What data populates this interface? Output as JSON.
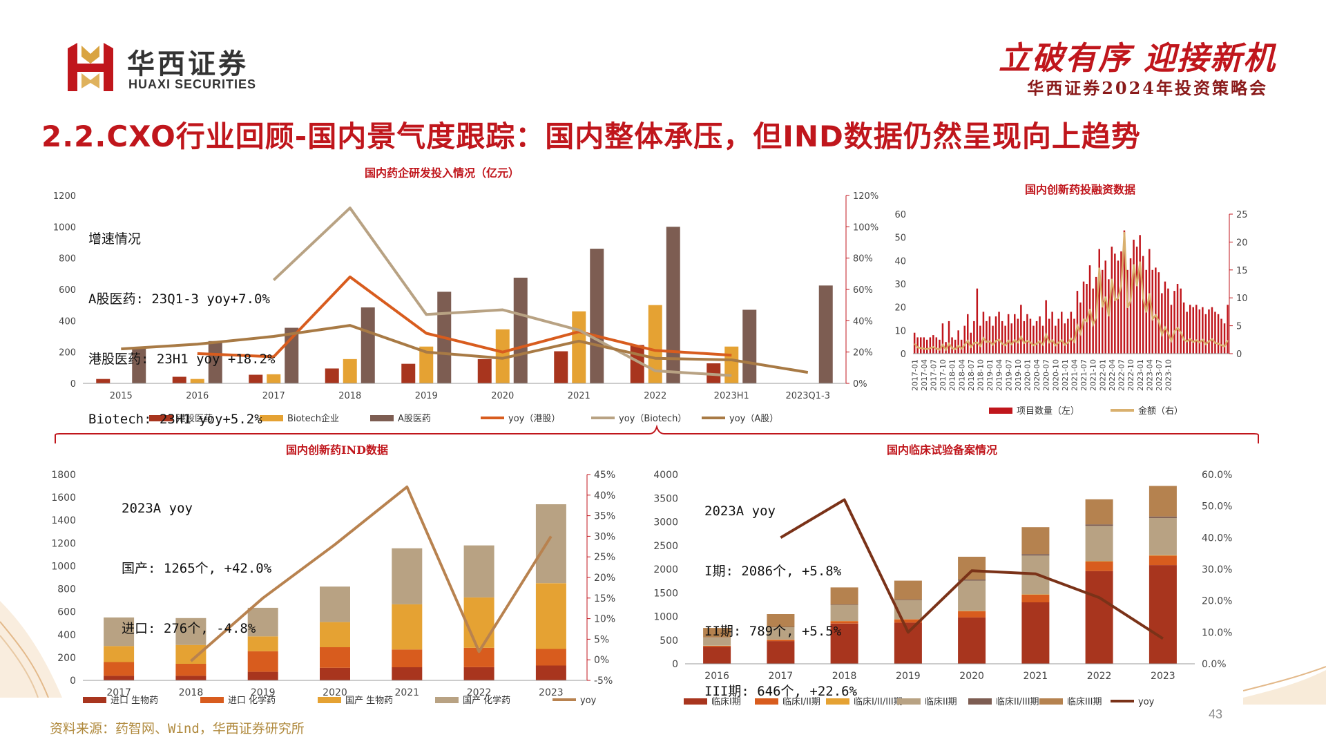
{
  "header": {
    "logo_cn": "华西证券",
    "logo_en": "HUAXI SECURITIES",
    "slogan_main": "立破有序 迎接新机",
    "slogan_sub": "华西证券2024年投资策略会",
    "page_title": "2.2.CXO行业回顾-国内景气度跟踪：国内整体承压，但IND数据仍然呈现向上趋势",
    "brand_color": "#c0161c"
  },
  "annotations": {
    "rd": [
      "增速情况",
      "A股医药: 23Q1-3 yoy+7.0%",
      "港股医药: 23H1 yoy +18.2%",
      "Biotech: 23H1 yoy+5.2%"
    ],
    "ind": [
      "2023A yoy",
      "国产: 1265个, +42.0%",
      "进口: 276个, -4.8%"
    ],
    "trial": [
      "2023A yoy",
      "I期: 2086个, +5.8%",
      "II期: 789个, +5.5%",
      "III期: 646个, +22.6%"
    ]
  },
  "footer": {
    "source": "资料来源：药智网、Wind，华西证券研究所",
    "page_number": "43"
  },
  "chart_data": [
    {
      "id": "rd",
      "type": "bar",
      "title": "国内药企研发投入情况（亿元）",
      "categories": [
        "2015",
        "2016",
        "2017",
        "2018",
        "2019",
        "2020",
        "2021",
        "2022",
        "2023H1",
        "2023Q1-3"
      ],
      "yticks": [
        "0",
        "200",
        "400",
        "600",
        "800",
        "1000",
        "1200"
      ],
      "y2ticks": [
        "0%",
        "20%",
        "40%",
        "60%",
        "80%",
        "100%",
        "120%"
      ],
      "ylim": [
        0,
        1200
      ],
      "y2lim": [
        0,
        120
      ],
      "bar_series": [
        {
          "name": "港股医药",
          "color": "#a8351e",
          "values": [
            28,
            42,
            55,
            95,
            125,
            155,
            205,
            245,
            128,
            null
          ]
        },
        {
          "name": "Biotech企业",
          "color": "#e5a233",
          "values": [
            null,
            28,
            58,
            155,
            235,
            345,
            460,
            500,
            235,
            null
          ]
        },
        {
          "name": "A股医药",
          "color": "#7d5d52",
          "values": [
            225,
            270,
            355,
            485,
            585,
            675,
            860,
            1000,
            470,
            625
          ]
        }
      ],
      "line_series": [
        {
          "name": "yoy（港股）",
          "color": "#d85c1e",
          "values": [
            null,
            19,
            17,
            68,
            32,
            20,
            33,
            21,
            18,
            null
          ]
        },
        {
          "name": "yoy（Biotech）",
          "color": "#b8a283",
          "values": [
            null,
            null,
            66,
            112,
            44,
            47,
            34,
            8,
            5,
            null
          ]
        },
        {
          "name": "yoy（A股）",
          "color": "#a87a45",
          "values": [
            22,
            25,
            30,
            37,
            20,
            16,
            27,
            16,
            15,
            7
          ]
        }
      ],
      "legend_position": "bottom"
    },
    {
      "id": "fund",
      "type": "bar",
      "title": "国内创新药投融资数据",
      "tick_labels": [
        "2017-01",
        "2017-04",
        "2017-07",
        "2017-10",
        "2018-01",
        "2018-04",
        "2018-07",
        "2018-10",
        "2019-01",
        "2019-04",
        "2019-07",
        "2019-10",
        "2020-01",
        "2020-04",
        "2020-07",
        "2020-10",
        "2021-01",
        "2021-04",
        "2021-07",
        "2021-10",
        "2022-01",
        "2022-04",
        "2022-07",
        "2022-10",
        "2023-01",
        "2023-04",
        "2023-07",
        "2023-10"
      ],
      "x_start": "2017-01",
      "yticks": [
        "0",
        "10",
        "20",
        "30",
        "40",
        "50",
        "60"
      ],
      "y2ticks": [
        "0",
        "5",
        "10",
        "15",
        "20",
        "25"
      ],
      "ylim": [
        0,
        60
      ],
      "y2lim": [
        0,
        25
      ],
      "bar_series": {
        "name": "项目数量（左）",
        "color": "#c0161c",
        "values": [
          9,
          7,
          7,
          7,
          6,
          7,
          8,
          7,
          6,
          13,
          5,
          14,
          7,
          6,
          10,
          6,
          12,
          17,
          9,
          14,
          28,
          12,
          18,
          14,
          16,
          12,
          16,
          18,
          14,
          12,
          17,
          13,
          17,
          15,
          21,
          14,
          17,
          15,
          12,
          14,
          16,
          12,
          23,
          15,
          18,
          12,
          15,
          18,
          13,
          15,
          18,
          15,
          27,
          22,
          31,
          30,
          38,
          28,
          33,
          45,
          36,
          40,
          32,
          46,
          43,
          40,
          44,
          53,
          36,
          41,
          49,
          46,
          51,
          42,
          36,
          45,
          36,
          37,
          35,
          26,
          31,
          28,
          21,
          27,
          30,
          28,
          22,
          18,
          21,
          20,
          21,
          19,
          20,
          17,
          19,
          20,
          18,
          17,
          15,
          13,
          21
        ]
      },
      "line_series": {
        "name": "金额（右）",
        "color": "#d9b06e",
        "values": [
          1.8,
          1.1,
          1.0,
          0.9,
          0.8,
          1.0,
          1.2,
          0.9,
          0.7,
          1.6,
          0.7,
          1.8,
          1.0,
          0.8,
          1.4,
          0.9,
          1.6,
          2.3,
          1.2,
          1.9,
          2.0,
          1.4,
          2.8,
          2.1,
          2.2,
          1.6,
          2.3,
          2.5,
          1.8,
          1.5,
          2.3,
          1.7,
          2.4,
          2.0,
          3.0,
          1.9,
          2.3,
          2.0,
          1.5,
          1.8,
          2.2,
          1.6,
          3.4,
          2.0,
          2.4,
          1.5,
          2.0,
          2.4,
          1.6,
          2.0,
          2.7,
          2.1,
          5.0,
          3.6,
          6.1,
          5.8,
          8.0,
          5.2,
          6.5,
          15.4,
          8.3,
          10.2,
          6.7,
          13.4,
          9.6,
          9.9,
          12.3,
          21.8,
          8.2,
          9.5,
          16.0,
          12.1,
          16.5,
          9.9,
          7.4,
          10.8,
          6.2,
          6.9,
          5.8,
          3.4,
          4.7,
          3.6,
          2.3,
          4.0,
          4.6,
          3.8,
          2.5,
          2.2,
          2.6,
          2.1,
          2.4,
          2.0,
          2.5,
          1.7,
          2.2,
          2.6,
          1.9,
          1.8,
          1.5,
          1.3,
          2.4
        ]
      },
      "legend_position": "bottom"
    },
    {
      "id": "ind",
      "type": "bar",
      "title": "国内创新药IND数据",
      "categories": [
        "2017",
        "2018",
        "2019",
        "2020",
        "2021",
        "2022",
        "2023"
      ],
      "yticks": [
        "0",
        "200",
        "400",
        "600",
        "800",
        "1000",
        "1200",
        "1400",
        "1600",
        "1800"
      ],
      "y2ticks": [
        "-5%",
        "0%",
        "5%",
        "10%",
        "15%",
        "20%",
        "25%",
        "30%",
        "35%",
        "40%",
        "45%"
      ],
      "ylim": [
        0,
        1800
      ],
      "y2lim": [
        -5,
        45
      ],
      "stack_series": [
        {
          "name": "进口 生物药",
          "color": "#a8351e",
          "values": [
            40,
            40,
            75,
            110,
            115,
            115,
            130
          ]
        },
        {
          "name": "进口 化学药",
          "color": "#d85c1e",
          "values": [
            120,
            105,
            180,
            180,
            155,
            170,
            145
          ]
        },
        {
          "name": "国产 生物药",
          "color": "#e5a233",
          "values": [
            140,
            165,
            130,
            220,
            395,
            440,
            575
          ]
        },
        {
          "name": "国产 化学药",
          "color": "#b8a283",
          "values": [
            250,
            235,
            250,
            310,
            490,
            455,
            690
          ]
        }
      ],
      "line_series": {
        "name": "yoy",
        "color": "#b8824f",
        "values": [
          null,
          -0.3,
          15,
          28,
          42,
          2,
          30
        ]
      },
      "legend_position": "bottom"
    },
    {
      "id": "trial",
      "type": "bar",
      "title": "国内临床试验备案情况",
      "categories": [
        "2016",
        "2017",
        "2018",
        "2019",
        "2020",
        "2021",
        "2022",
        "2023"
      ],
      "yticks": [
        "0",
        "500",
        "1000",
        "1500",
        "2000",
        "2500",
        "3000",
        "3500",
        "4000"
      ],
      "y2ticks": [
        "0.0%",
        "10.0%",
        "20.0%",
        "30.0%",
        "40.0%",
        "50.0%",
        "60.0%"
      ],
      "ylim": [
        0,
        4000
      ],
      "y2lim": [
        0,
        60
      ],
      "stack_series": [
        {
          "name": "临床I期",
          "color": "#a8351e",
          "values": [
            360,
            480,
            850,
            870,
            980,
            1300,
            1960,
            2086
          ]
        },
        {
          "name": "临床I/II期",
          "color": "#d85c1e",
          "values": [
            20,
            30,
            50,
            70,
            130,
            160,
            200,
            200
          ]
        },
        {
          "name": "临床I/II/III期",
          "color": "#e5a233",
          "values": [
            3,
            3,
            5,
            5,
            8,
            8,
            8,
            8
          ]
        },
        {
          "name": "临床II期",
          "color": "#b8a283",
          "values": [
            170,
            260,
            340,
            400,
            640,
            820,
            748,
            789
          ]
        },
        {
          "name": "临床II/III期",
          "color": "#7d5d52",
          "values": [
            5,
            8,
            10,
            12,
            25,
            30,
            30,
            30
          ]
        },
        {
          "name": "临床III期",
          "color": "#b5824f",
          "values": [
            200,
            270,
            360,
            400,
            480,
            570,
            530,
            646
          ]
        }
      ],
      "line_series": {
        "name": "yoy",
        "color": "#7a3218",
        "values": [
          null,
          40,
          52,
          10,
          29.5,
          28.5,
          21,
          8
        ]
      },
      "legend_position": "bottom"
    }
  ]
}
